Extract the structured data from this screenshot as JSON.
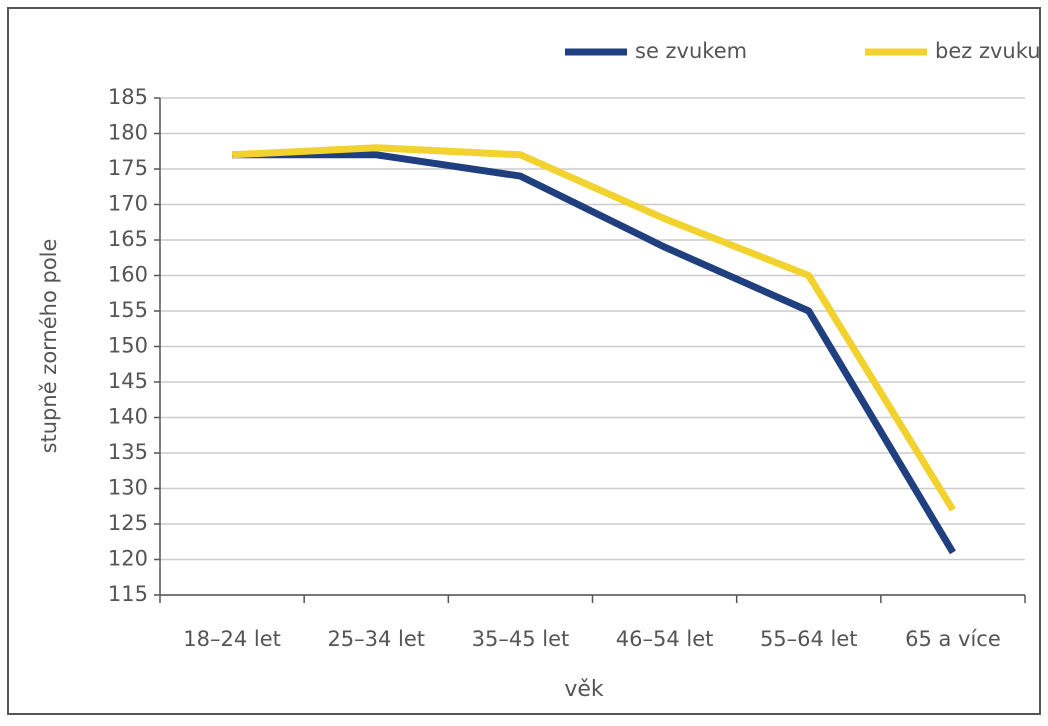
{
  "chart_data": {
    "type": "line",
    "x_label": "věk",
    "y_label": "stupně zorného pole",
    "categories": [
      "18–24 let",
      "25–34 let",
      "35–45 let",
      "46–54 let",
      "55–64 let",
      "65 a více"
    ],
    "series": [
      {
        "name": "se zvukem",
        "color": "#1f3f7f",
        "values": [
          177,
          177,
          174,
          164,
          155,
          121
        ]
      },
      {
        "name": "bez zvuku",
        "color": "#f2d22e",
        "values": [
          177,
          178,
          177,
          168,
          160,
          127
        ]
      }
    ],
    "ylim": [
      115,
      185
    ],
    "yticks": [
      115,
      120,
      125,
      130,
      135,
      140,
      145,
      150,
      155,
      160,
      165,
      170,
      175,
      180,
      185
    ],
    "grid": true,
    "legend": "top-right"
  }
}
